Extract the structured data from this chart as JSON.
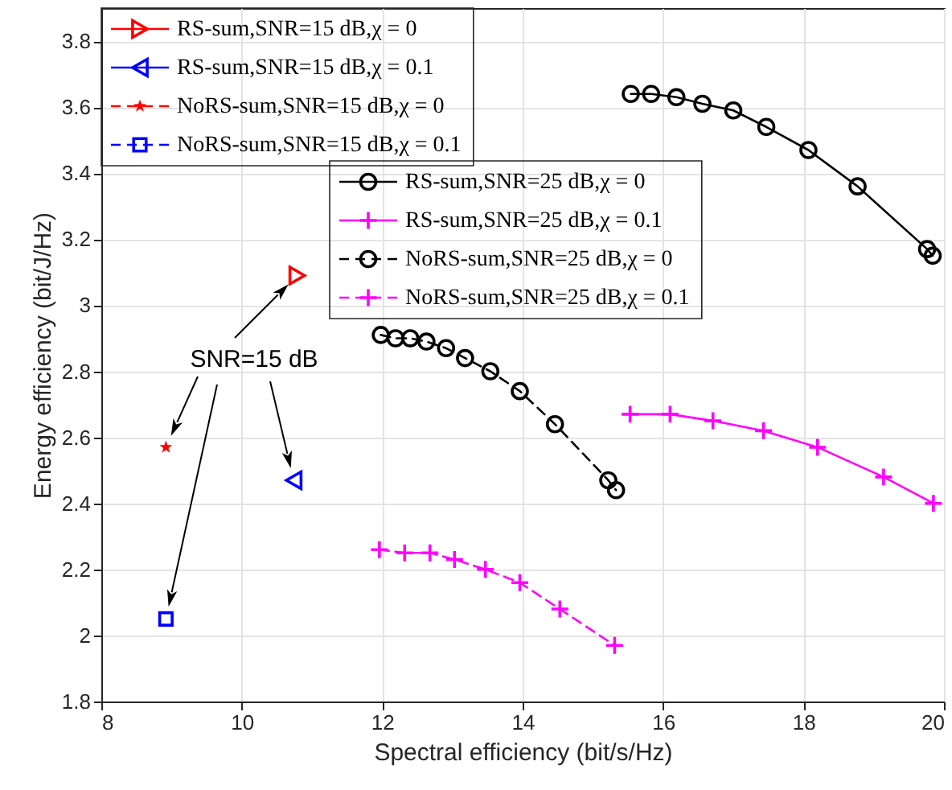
{
  "chart_data": {
    "type": "line",
    "xlabel": "Spectral efficiency (bit/s/Hz)",
    "ylabel": "Energy efficiency (bit/J/Hz)",
    "xlim": [
      8,
      20
    ],
    "ylim": [
      1.8,
      3.9
    ],
    "xticks": [
      8,
      10,
      12,
      14,
      16,
      18,
      20
    ],
    "yticks": [
      1.8,
      2,
      2.2,
      2.4,
      2.6,
      2.8,
      3,
      3.2,
      3.4,
      3.6,
      3.8
    ],
    "grid": true,
    "legend": "top left",
    "annotations": [
      {
        "text": "SNR=15 dB",
        "x": 10.79,
        "y": 3.09
      }
    ],
    "series": [
      {
        "name": "RS-sum,SNR=15 dB,χ = 0",
        "color": "#ff0000",
        "type": "scatter",
        "marker": "triangle-right",
        "line_style": "solid",
        "x": [
          10.79
        ],
        "values": [
          3.09
        ]
      },
      {
        "name": "RS-sum,SNR=15 dB,χ = 0.1",
        "color": "#0000ff",
        "type": "scatter",
        "marker": "triangle-left",
        "line_style": "solid",
        "x": [
          10.74
        ],
        "values": [
          2.47
        ]
      },
      {
        "name": "NoRS-sum,SNR=15 dB,χ = 0",
        "color": "#ff0000",
        "type": "scatter",
        "marker": "star",
        "line_style": "dashed",
        "x": [
          8.92
        ],
        "values": [
          2.57
        ]
      },
      {
        "name": "NoRS-sum,SNR=15 dB,χ = 0.1",
        "color": "#0000ff",
        "type": "scatter",
        "marker": "square",
        "line_style": "dashed",
        "x": [
          8.92
        ],
        "values": [
          2.05
        ]
      },
      {
        "name": "RS-sum,SNR=25 dB,χ = 0",
        "color": "#000000",
        "marker": "circle",
        "line_style": "solid",
        "x": [
          15.54,
          15.83,
          16.19,
          16.56,
          17.0,
          17.47,
          18.07,
          18.77,
          19.76,
          19.84
        ],
        "values": [
          3.64,
          3.64,
          3.63,
          3.61,
          3.59,
          3.54,
          3.47,
          3.36,
          3.17,
          3.15
        ]
      },
      {
        "name": "RS-sum,SNR=25 dB,χ = 0.1",
        "color": "#ff00ff",
        "marker": "cross",
        "line_style": "solid",
        "x": [
          15.53,
          16.1,
          16.71,
          17.43,
          18.2,
          19.14,
          19.85
        ],
        "values": [
          2.67,
          2.67,
          2.65,
          2.62,
          2.57,
          2.48,
          2.4
        ]
      },
      {
        "name": "NoRS-sum,SNR=25 dB,χ = 0",
        "color": "#000000",
        "marker": "circle",
        "line_style": "dashed",
        "x": [
          11.98,
          12.19,
          12.4,
          12.63,
          12.91,
          13.18,
          13.54,
          13.96,
          14.46,
          15.22,
          15.33
        ],
        "values": [
          2.91,
          2.9,
          2.9,
          2.89,
          2.87,
          2.84,
          2.8,
          2.74,
          2.64,
          2.47,
          2.44
        ]
      },
      {
        "name": "NoRS-sum,SNR=25 dB,χ = 0.1",
        "color": "#ff00ff",
        "marker": "cross",
        "line_style": "dashed",
        "x": [
          11.96,
          12.32,
          12.68,
          13.03,
          13.47,
          13.96,
          14.53,
          15.31
        ],
        "values": [
          2.26,
          2.25,
          2.25,
          2.23,
          2.2,
          2.16,
          2.08,
          1.97
        ]
      }
    ]
  }
}
